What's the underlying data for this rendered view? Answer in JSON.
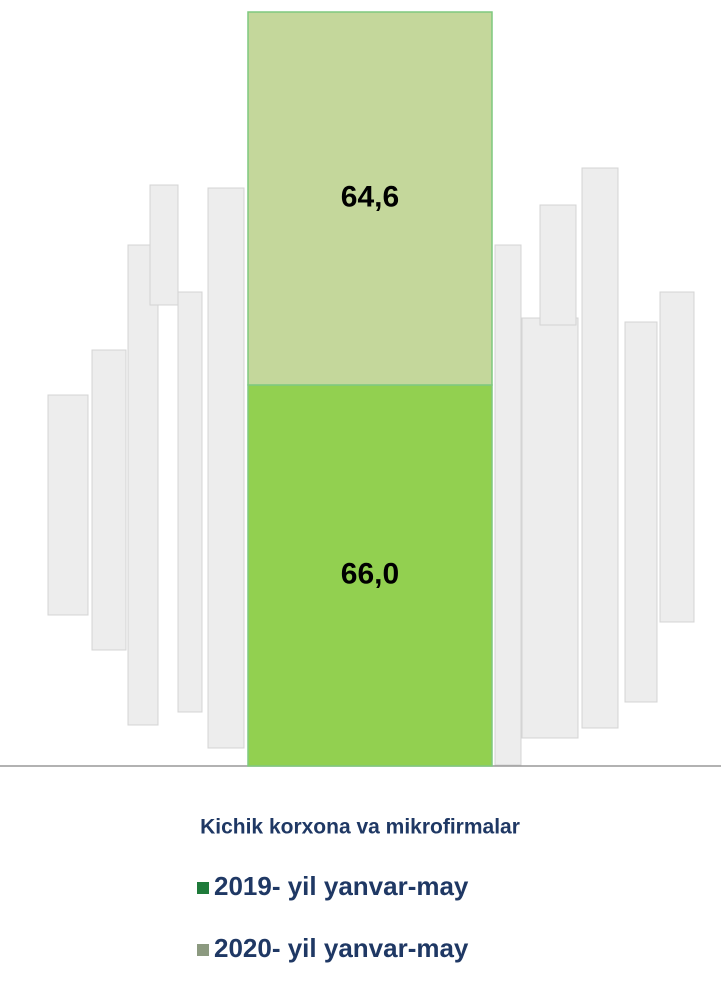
{
  "chart_data": {
    "type": "stacked_bar",
    "categories": [
      "Kichik korxona va mikrofirmalar"
    ],
    "series": [
      {
        "name": "2019- yil yanvar-may",
        "color": "#92d050",
        "marker_color": "#1e7a3a",
        "values": [
          66.0
        ],
        "value_labels": [
          "66,0"
        ]
      },
      {
        "name": "2020- yil yanvar-may",
        "color": "#c4d79b",
        "marker_color": "#8c9a80",
        "values": [
          64.6
        ],
        "value_labels": [
          "64,6"
        ]
      }
    ]
  }
}
